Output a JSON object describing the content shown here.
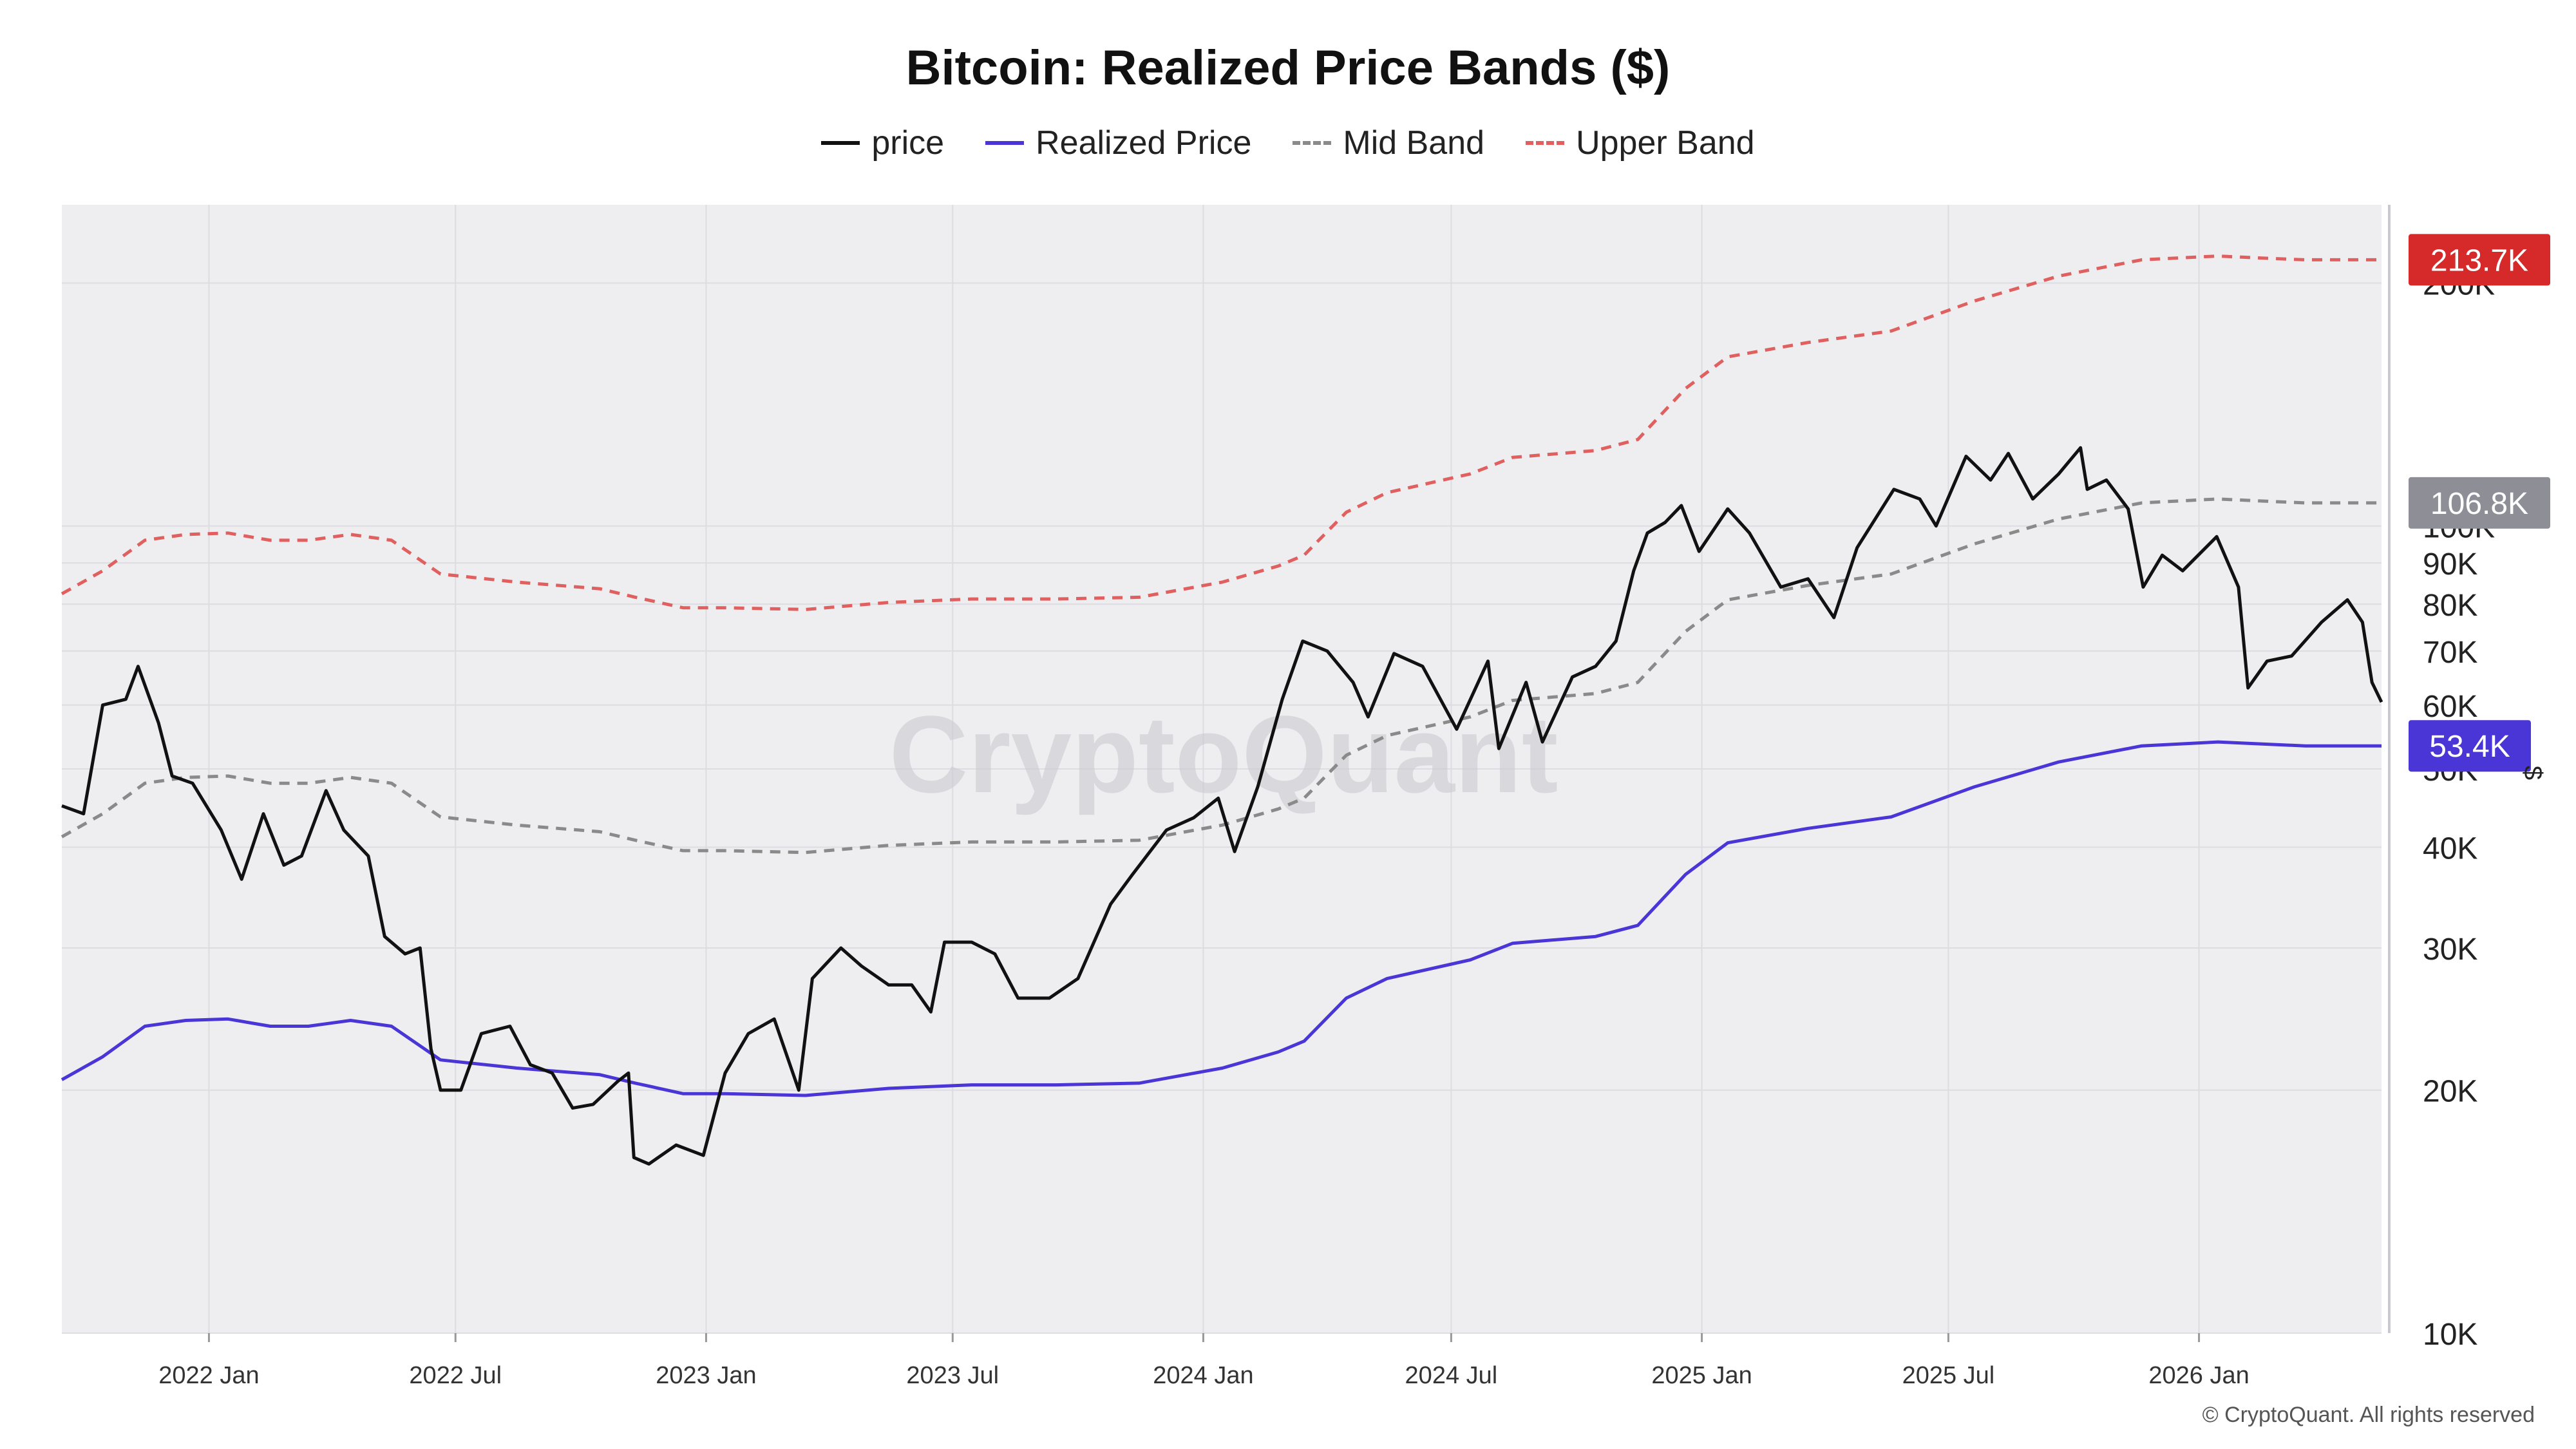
{
  "colors": {
    "background": "#ffffff",
    "plot_background": "#eeeef1",
    "gridline": "#dcdce2",
    "price": "#111111",
    "realized": "#4a35d6",
    "mid": "#8a8a8a",
    "upper": "#e06060",
    "badge_upper": "#d62a2a",
    "badge_mid": "#8e8e96",
    "badge_realized": "#4a35d6"
  },
  "legend": [
    {
      "label": "price",
      "style": "solid",
      "color_key": "price"
    },
    {
      "label": "Realized Price",
      "style": "solid",
      "color_key": "realized"
    },
    {
      "label": "Mid Band",
      "style": "dashed",
      "color_key": "mid"
    },
    {
      "label": "Upper Band",
      "style": "dashed",
      "color_key": "upper"
    }
  ],
  "badges": [
    {
      "label": "213.7K",
      "value": 213700,
      "color_key": "badge_upper"
    },
    {
      "label": "106.8K",
      "value": 106800,
      "color_key": "badge_mid"
    },
    {
      "label": "53.4K",
      "value": 53400,
      "color_key": "badge_realized"
    }
  ],
  "y_axis_unit": "$",
  "watermark": "CryptoQuant",
  "copyright": "© CryptoQuant. All rights reserved",
  "chart_data": {
    "type": "line",
    "title": "Bitcoin: Realized Price Bands ($)",
    "y_scale": "log",
    "ylim": [
      10000,
      250000
    ],
    "xlim": [
      "2021-09-15",
      "2026-05-15"
    ],
    "grid": true,
    "legend_position": "top-center",
    "x_ticks": [
      {
        "label": "2022 Jan",
        "date": "2022-01-01"
      },
      {
        "label": "2022 Jul",
        "date": "2022-07-01"
      },
      {
        "label": "2023 Jan",
        "date": "2023-01-01"
      },
      {
        "label": "2023 Jul",
        "date": "2023-07-01"
      },
      {
        "label": "2024 Jan",
        "date": "2024-01-01"
      },
      {
        "label": "2024 Jul",
        "date": "2024-07-01"
      },
      {
        "label": "2025 Jan",
        "date": "2025-01-01"
      },
      {
        "label": "2025 Jul",
        "date": "2025-07-01"
      },
      {
        "label": "2026 Jan",
        "date": "2026-01-01"
      }
    ],
    "y_ticks": [
      {
        "label": "10K",
        "value": 10000
      },
      {
        "label": "20K",
        "value": 20000
      },
      {
        "label": "30K",
        "value": 30000
      },
      {
        "label": "40K",
        "value": 40000
      },
      {
        "label": "50K",
        "value": 50000
      },
      {
        "label": "60K",
        "value": 60000
      },
      {
        "label": "70K",
        "value": 70000
      },
      {
        "label": "80K",
        "value": 80000
      },
      {
        "label": "90K",
        "value": 90000
      },
      {
        "label": "100K",
        "value": 100000
      },
      {
        "label": "200K",
        "value": 200000
      }
    ],
    "series": [
      {
        "name": "price",
        "color_key": "price",
        "dash": false,
        "points": [
          [
            "2021-09-15",
            45000
          ],
          [
            "2021-10-01",
            44000
          ],
          [
            "2021-10-15",
            60000
          ],
          [
            "2021-11-01",
            61000
          ],
          [
            "2021-11-10",
            67000
          ],
          [
            "2021-11-25",
            57000
          ],
          [
            "2021-12-05",
            49000
          ],
          [
            "2021-12-20",
            48000
          ],
          [
            "2022-01-10",
            42000
          ],
          [
            "2022-01-25",
            36500
          ],
          [
            "2022-02-10",
            44000
          ],
          [
            "2022-02-25",
            38000
          ],
          [
            "2022-03-10",
            39000
          ],
          [
            "2022-03-28",
            47000
          ],
          [
            "2022-04-10",
            42000
          ],
          [
            "2022-04-28",
            39000
          ],
          [
            "2022-05-10",
            31000
          ],
          [
            "2022-05-25",
            29500
          ],
          [
            "2022-06-05",
            30000
          ],
          [
            "2022-06-13",
            22500
          ],
          [
            "2022-06-20",
            20000
          ],
          [
            "2022-07-05",
            20000
          ],
          [
            "2022-07-20",
            23500
          ],
          [
            "2022-08-10",
            24000
          ],
          [
            "2022-08-25",
            21500
          ],
          [
            "2022-09-10",
            21000
          ],
          [
            "2022-09-25",
            19000
          ],
          [
            "2022-10-10",
            19200
          ],
          [
            "2022-10-28",
            20500
          ],
          [
            "2022-11-05",
            21000
          ],
          [
            "2022-11-09",
            16500
          ],
          [
            "2022-11-20",
            16200
          ],
          [
            "2022-12-10",
            17100
          ],
          [
            "2022-12-30",
            16600
          ],
          [
            "2023-01-15",
            21000
          ],
          [
            "2023-02-01",
            23500
          ],
          [
            "2023-02-20",
            24500
          ],
          [
            "2023-03-10",
            20000
          ],
          [
            "2023-03-20",
            27500
          ],
          [
            "2023-04-10",
            30000
          ],
          [
            "2023-04-25",
            28500
          ],
          [
            "2023-05-15",
            27000
          ],
          [
            "2023-06-01",
            27000
          ],
          [
            "2023-06-15",
            25000
          ],
          [
            "2023-06-25",
            30500
          ],
          [
            "2023-07-15",
            30500
          ],
          [
            "2023-08-01",
            29500
          ],
          [
            "2023-08-18",
            26000
          ],
          [
            "2023-09-10",
            26000
          ],
          [
            "2023-10-01",
            27500
          ],
          [
            "2023-10-25",
            34000
          ],
          [
            "2023-11-10",
            37000
          ],
          [
            "2023-12-05",
            42000
          ],
          [
            "2023-12-25",
            43500
          ],
          [
            "2024-01-12",
            46000
          ],
          [
            "2024-01-24",
            39500
          ],
          [
            "2024-02-10",
            47500
          ],
          [
            "2024-02-28",
            61000
          ],
          [
            "2024-03-14",
            72000
          ],
          [
            "2024-04-01",
            70000
          ],
          [
            "2024-04-20",
            64000
          ],
          [
            "2024-05-01",
            58000
          ],
          [
            "2024-05-20",
            69500
          ],
          [
            "2024-06-10",
            67000
          ],
          [
            "2024-07-05",
            56000
          ],
          [
            "2024-07-28",
            68000
          ],
          [
            "2024-08-05",
            53000
          ],
          [
            "2024-08-25",
            64000
          ],
          [
            "2024-09-06",
            54000
          ],
          [
            "2024-09-28",
            65000
          ],
          [
            "2024-10-15",
            67000
          ],
          [
            "2024-10-30",
            72000
          ],
          [
            "2024-11-12",
            88000
          ],
          [
            "2024-11-22",
            98000
          ],
          [
            "2024-12-05",
            101000
          ],
          [
            "2024-12-17",
            106000
          ],
          [
            "2024-12-30",
            93000
          ],
          [
            "2025-01-20",
            105000
          ],
          [
            "2025-02-05",
            98000
          ],
          [
            "2025-02-28",
            84000
          ],
          [
            "2025-03-20",
            86000
          ],
          [
            "2025-04-08",
            77000
          ],
          [
            "2025-04-25",
            94000
          ],
          [
            "2025-05-22",
            111000
          ],
          [
            "2025-06-10",
            108000
          ],
          [
            "2025-06-22",
            100000
          ],
          [
            "2025-07-14",
            122000
          ],
          [
            "2025-08-01",
            114000
          ],
          [
            "2025-08-14",
            123000
          ],
          [
            "2025-09-01",
            108000
          ],
          [
            "2025-09-20",
            116000
          ],
          [
            "2025-10-06",
            125000
          ],
          [
            "2025-10-11",
            111000
          ],
          [
            "2025-10-25",
            114000
          ],
          [
            "2025-11-10",
            105000
          ],
          [
            "2025-11-21",
            84000
          ],
          [
            "2025-12-05",
            92000
          ],
          [
            "2025-12-20",
            88000
          ],
          [
            "2026-01-14",
            97000
          ],
          [
            "2026-01-30",
            84000
          ],
          [
            "2026-02-06",
            63000
          ],
          [
            "2026-02-20",
            68000
          ],
          [
            "2026-03-10",
            69000
          ],
          [
            "2026-04-01",
            76000
          ],
          [
            "2026-04-20",
            81000
          ],
          [
            "2026-05-01",
            76000
          ],
          [
            "2026-05-08",
            64000
          ],
          [
            "2026-05-15",
            60500
          ]
        ]
      },
      {
        "name": "Realized Price",
        "color_key": "realized",
        "dash": false,
        "points": [
          [
            "2021-09-15",
            20600
          ],
          [
            "2021-10-15",
            22000
          ],
          [
            "2021-11-15",
            24000
          ],
          [
            "2021-12-15",
            24400
          ],
          [
            "2022-01-15",
            24500
          ],
          [
            "2022-02-15",
            24000
          ],
          [
            "2022-03-15",
            24000
          ],
          [
            "2022-04-15",
            24400
          ],
          [
            "2022-05-15",
            24000
          ],
          [
            "2022-06-20",
            21800
          ],
          [
            "2022-08-15",
            21300
          ],
          [
            "2022-10-15",
            20900
          ],
          [
            "2022-11-10",
            20400
          ],
          [
            "2022-12-15",
            19800
          ],
          [
            "2023-01-15",
            19800
          ],
          [
            "2023-03-15",
            19700
          ],
          [
            "2023-05-15",
            20100
          ],
          [
            "2023-07-15",
            20300
          ],
          [
            "2023-09-15",
            20300
          ],
          [
            "2023-11-15",
            20400
          ],
          [
            "2024-01-15",
            21300
          ],
          [
            "2024-02-25",
            22300
          ],
          [
            "2024-03-15",
            23000
          ],
          [
            "2024-04-15",
            26000
          ],
          [
            "2024-05-15",
            27500
          ],
          [
            "2024-07-15",
            29000
          ],
          [
            "2024-08-15",
            30400
          ],
          [
            "2024-10-15",
            31000
          ],
          [
            "2024-11-15",
            32000
          ],
          [
            "2024-12-20",
            37000
          ],
          [
            "2025-01-20",
            40500
          ],
          [
            "2025-03-20",
            42200
          ],
          [
            "2025-05-20",
            43600
          ],
          [
            "2025-07-20",
            47500
          ],
          [
            "2025-09-20",
            51000
          ],
          [
            "2025-11-20",
            53400
          ],
          [
            "2026-01-15",
            54000
          ],
          [
            "2026-02-15",
            53700
          ],
          [
            "2026-03-20",
            53400
          ],
          [
            "2026-05-15",
            53400
          ]
        ]
      },
      {
        "name": "Mid Band",
        "color_key": "mid",
        "dash": true,
        "points": [
          [
            "2021-09-15",
            41200
          ],
          [
            "2021-10-15",
            44000
          ],
          [
            "2021-11-15",
            48000
          ],
          [
            "2021-12-15",
            48800
          ],
          [
            "2022-01-15",
            49000
          ],
          [
            "2022-02-15",
            48000
          ],
          [
            "2022-03-15",
            48000
          ],
          [
            "2022-04-15",
            48800
          ],
          [
            "2022-05-15",
            48000
          ],
          [
            "2022-06-20",
            43600
          ],
          [
            "2022-08-15",
            42600
          ],
          [
            "2022-10-15",
            41800
          ],
          [
            "2022-11-10",
            40800
          ],
          [
            "2022-12-15",
            39600
          ],
          [
            "2023-01-15",
            39600
          ],
          [
            "2023-03-15",
            39400
          ],
          [
            "2023-05-15",
            40200
          ],
          [
            "2023-07-15",
            40600
          ],
          [
            "2023-09-15",
            40600
          ],
          [
            "2023-11-15",
            40800
          ],
          [
            "2024-01-15",
            42600
          ],
          [
            "2024-02-25",
            44600
          ],
          [
            "2024-03-15",
            46000
          ],
          [
            "2024-04-15",
            52000
          ],
          [
            "2024-05-15",
            55000
          ],
          [
            "2024-07-15",
            58000
          ],
          [
            "2024-08-15",
            60800
          ],
          [
            "2024-10-15",
            62000
          ],
          [
            "2024-11-15",
            64000
          ],
          [
            "2024-12-20",
            74000
          ],
          [
            "2025-01-20",
            81000
          ],
          [
            "2025-03-20",
            84400
          ],
          [
            "2025-05-20",
            87200
          ],
          [
            "2025-07-20",
            95000
          ],
          [
            "2025-09-20",
            102000
          ],
          [
            "2025-11-20",
            106800
          ],
          [
            "2026-01-15",
            108000
          ],
          [
            "2026-02-15",
            107400
          ],
          [
            "2026-03-20",
            106800
          ],
          [
            "2026-05-15",
            106800
          ]
        ]
      },
      {
        "name": "Upper Band",
        "color_key": "upper",
        "dash": true,
        "points": [
          [
            "2021-09-15",
            82400
          ],
          [
            "2021-10-15",
            88000
          ],
          [
            "2021-11-15",
            96000
          ],
          [
            "2021-12-15",
            97600
          ],
          [
            "2022-01-15",
            98000
          ],
          [
            "2022-02-15",
            96000
          ],
          [
            "2022-03-15",
            96000
          ],
          [
            "2022-04-15",
            97600
          ],
          [
            "2022-05-15",
            96000
          ],
          [
            "2022-06-20",
            87200
          ],
          [
            "2022-08-15",
            85200
          ],
          [
            "2022-10-15",
            83600
          ],
          [
            "2022-11-10",
            81600
          ],
          [
            "2022-12-15",
            79200
          ],
          [
            "2023-01-15",
            79200
          ],
          [
            "2023-03-15",
            78800
          ],
          [
            "2023-05-15",
            80400
          ],
          [
            "2023-07-15",
            81200
          ],
          [
            "2023-09-15",
            81200
          ],
          [
            "2023-11-15",
            81600
          ],
          [
            "2024-01-15",
            85200
          ],
          [
            "2024-02-25",
            89200
          ],
          [
            "2024-03-15",
            92000
          ],
          [
            "2024-04-15",
            104000
          ],
          [
            "2024-05-15",
            110000
          ],
          [
            "2024-07-15",
            116000
          ],
          [
            "2024-08-15",
            121600
          ],
          [
            "2024-10-15",
            124000
          ],
          [
            "2024-11-15",
            128000
          ],
          [
            "2024-12-20",
            148000
          ],
          [
            "2025-01-20",
            162000
          ],
          [
            "2025-03-20",
            168800
          ],
          [
            "2025-05-20",
            174400
          ],
          [
            "2025-07-20",
            190000
          ],
          [
            "2025-09-20",
            204000
          ],
          [
            "2025-11-20",
            213700
          ],
          [
            "2026-01-15",
            216000
          ],
          [
            "2026-02-15",
            214800
          ],
          [
            "2026-03-20",
            213700
          ],
          [
            "2026-05-15",
            213700
          ]
        ]
      }
    ]
  }
}
